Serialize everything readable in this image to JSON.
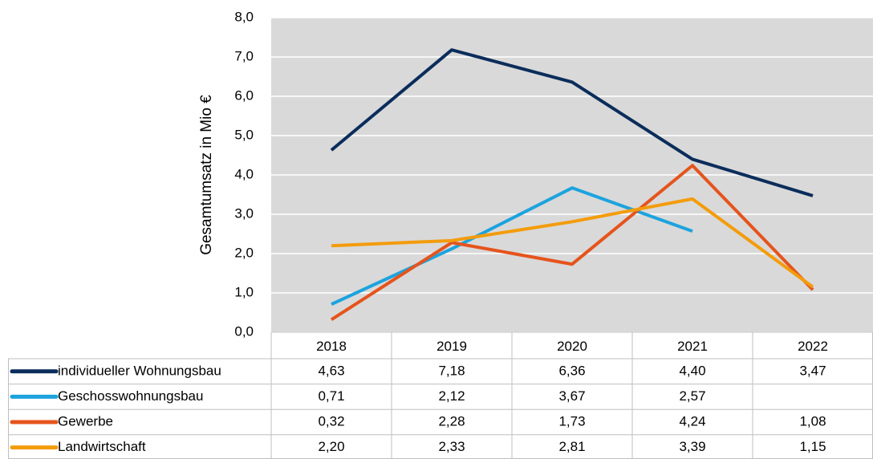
{
  "chart_data": {
    "type": "line",
    "y_label": "Gesamtumsatz in Mio €",
    "categories": [
      "2018",
      "2019",
      "2020",
      "2021",
      "2022"
    ],
    "series": [
      {
        "name": "individueller Wohnungsbau",
        "color": "#0b2d5b",
        "values": [
          4.63,
          7.18,
          6.36,
          4.4,
          3.47
        ],
        "value_labels": [
          "4,63",
          "7,18",
          "6,36",
          "4,40",
          "3,47"
        ]
      },
      {
        "name": "Geschosswohnungsbau",
        "color": "#1ca3de",
        "values": [
          0.71,
          2.12,
          3.67,
          2.57,
          null
        ],
        "value_labels": [
          "0,71",
          "2,12",
          "3,67",
          "2,57",
          null
        ]
      },
      {
        "name": "Gewerbe",
        "color": "#e5541c",
        "values": [
          0.32,
          2.28,
          1.73,
          4.24,
          1.08
        ],
        "value_labels": [
          "0,32",
          "2,28",
          "1,73",
          "4,24",
          "1,08"
        ]
      },
      {
        "name": "Landwirtschaft",
        "color": "#f39c0c",
        "values": [
          2.2,
          2.33,
          2.81,
          3.39,
          1.15
        ],
        "value_labels": [
          "2,20",
          "2,33",
          "2,81",
          "3,39",
          "1,15"
        ]
      }
    ],
    "ylim": [
      0,
      8
    ],
    "yticks": [
      {
        "value": 0,
        "label": "0,0"
      },
      {
        "value": 1,
        "label": "1,0"
      },
      {
        "value": 2,
        "label": "2,0"
      },
      {
        "value": 3,
        "label": "3,0"
      },
      {
        "value": 4,
        "label": "4,0"
      },
      {
        "value": 5,
        "label": "5,0"
      },
      {
        "value": 6,
        "label": "6,0"
      },
      {
        "value": 7,
        "label": "7,0"
      },
      {
        "value": 8,
        "label": "8,0"
      }
    ],
    "grid": true
  }
}
